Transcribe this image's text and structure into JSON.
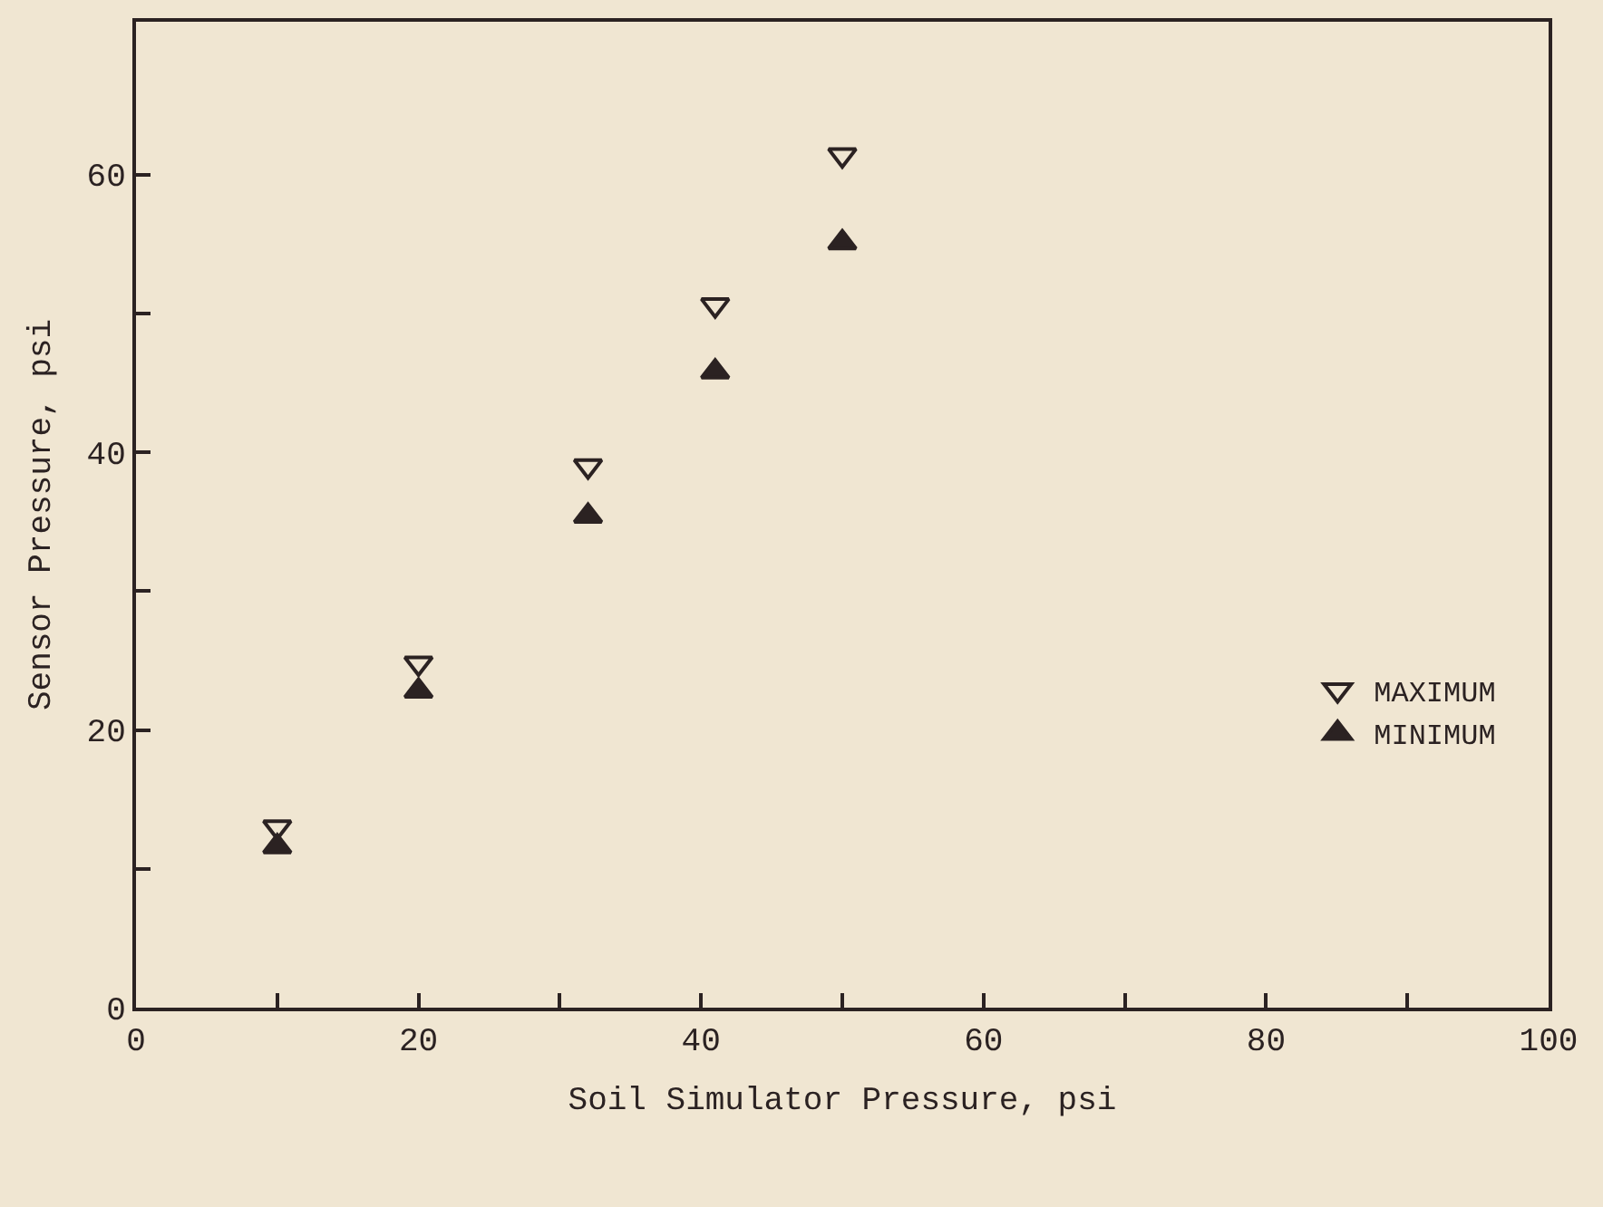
{
  "chart_data": {
    "type": "scatter",
    "xlabel": "Soil Simulator Pressure, psi",
    "ylabel": "Sensor Pressure, psi",
    "x": [
      10,
      20,
      32,
      41,
      50
    ],
    "series": [
      {
        "name": "MAXIMUM",
        "color": "#2b2222",
        "marker": "triangle-down-open",
        "values": [
          13,
          24.8,
          39,
          50.6,
          61.4
        ]
      },
      {
        "name": "MINIMUM",
        "color": "#2b2222",
        "marker": "triangle",
        "values": [
          11.6,
          22.8,
          35.4,
          45.8,
          55.1
        ]
      }
    ],
    "xlim": [
      0,
      100
    ],
    "ylim": [
      0,
      71
    ],
    "xticks": [
      0,
      {
        "value": 10,
        "label": null
      },
      20,
      {
        "value": 30,
        "label": null
      },
      40,
      {
        "value": 50,
        "label": null
      },
      60,
      {
        "value": 70,
        "label": null
      },
      80,
      {
        "value": 90,
        "label": null
      },
      100
    ],
    "yticks": [
      0,
      {
        "value": 10,
        "label": null
      },
      20,
      {
        "value": 30,
        "label": null
      },
      40,
      {
        "value": 50,
        "label": null
      },
      60
    ],
    "grid": false,
    "legend": "right"
  }
}
